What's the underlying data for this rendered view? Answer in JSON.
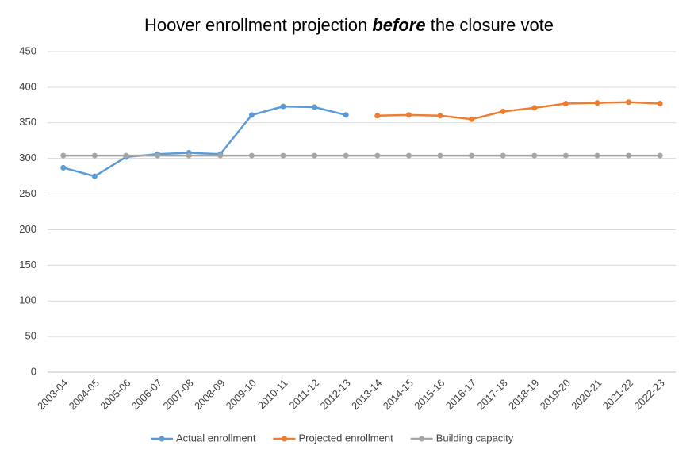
{
  "chart_data": {
    "type": "line",
    "title": [
      "Hoover enrollment projection",
      "before",
      "the closure vote"
    ],
    "categories": [
      "2003-04",
      "2004-05",
      "2005-06",
      "2006-07",
      "2007-08",
      "2008-09",
      "2009-10",
      "2010-11",
      "2011-12",
      "2012-13",
      "2013-14",
      "2014-15",
      "2015-16",
      "2016-17",
      "2017-18",
      "2018-19",
      "2019-20",
      "2020-21",
      "2021-22",
      "2022-23"
    ],
    "series": [
      {
        "name": "Actual enrollment",
        "color": "#5b9bd5",
        "values": [
          287,
          275,
          302,
          306,
          308,
          306,
          361,
          373,
          372,
          361,
          null,
          null,
          null,
          null,
          null,
          null,
          null,
          null,
          null,
          null
        ]
      },
      {
        "name": "Projected enrollment",
        "color": "#ed7d31",
        "values": [
          null,
          null,
          null,
          null,
          null,
          null,
          null,
          null,
          null,
          null,
          360,
          361,
          360,
          355,
          366,
          371,
          377,
          378,
          379,
          377
        ]
      },
      {
        "name": "Building capacity",
        "color": "#a5a5a5",
        "values": [
          304,
          304,
          304,
          304,
          304,
          304,
          304,
          304,
          304,
          304,
          304,
          304,
          304,
          304,
          304,
          304,
          304,
          304,
          304,
          304
        ]
      }
    ],
    "ylim": [
      0,
      450
    ],
    "yticks": [
      0,
      50,
      100,
      150,
      200,
      250,
      300,
      350,
      400,
      450
    ],
    "grid": true,
    "legend": "bottom"
  }
}
